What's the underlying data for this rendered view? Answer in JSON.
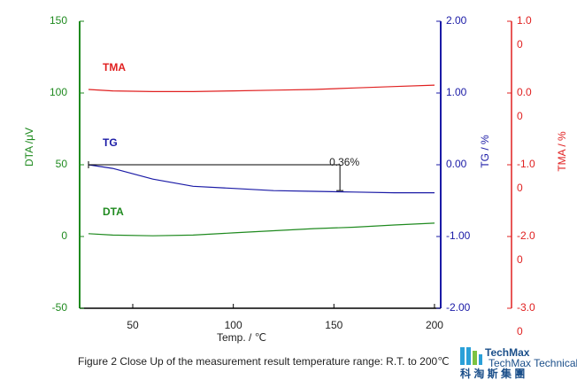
{
  "chart_data": {
    "type": "line",
    "x_label": "Temp. / ℃",
    "y_label": "DTA /μV",
    "y2_label": "TG / %",
    "y3_label": "TMA / %",
    "caption": "Figure 2 Close Up of the measurement result temperature range: R.T. to 200℃",
    "logo": {
      "name": "TechMax",
      "subtitle": "TechMax Technical Co., Ltd",
      "chinese": "科 淘 斯 集 團"
    },
    "xlim": [
      23.6,
      203.1
    ],
    "xticks": [
      50,
      100,
      150,
      200
    ],
    "ylim": [
      -50,
      150
    ],
    "yticks": [
      -50,
      0,
      50,
      100,
      150
    ],
    "y2lim": [
      -2,
      2
    ],
    "y2ticks": [
      {
        "value": -2,
        "label": "-2.00"
      },
      {
        "value": -1,
        "label": "-1.00"
      },
      {
        "value": 0,
        "label": "0.00"
      },
      {
        "value": 1,
        "label": "1.00"
      },
      {
        "value": 2,
        "label": "2.00"
      }
    ],
    "y3lim": [
      -3,
      1
    ],
    "y3ticks": [
      {
        "value": -3,
        "label": "-3.0"
      },
      {
        "value": -2,
        "label": "-2.0"
      },
      {
        "value": -1,
        "label": "-1.0"
      },
      {
        "value": 0,
        "label": "0.0"
      },
      {
        "value": 1,
        "label": "1.0"
      }
    ],
    "y3_secondary_labels": [
      "0",
      "0",
      "0",
      "0",
      "0"
    ],
    "x": [
      28,
      40,
      60,
      80,
      100,
      120,
      140,
      160,
      180,
      200
    ],
    "series": [
      {
        "name": "TMA",
        "color": "#e02020",
        "axis": "y3",
        "values": [
          0.05,
          0.03,
          0.02,
          0.02,
          0.03,
          0.04,
          0.05,
          0.07,
          0.09,
          0.11
        ]
      },
      {
        "name": "TG",
        "color": "#1a1aa6",
        "axis": "y2",
        "values": [
          0.0,
          -0.05,
          -0.2,
          -0.3,
          -0.33,
          -0.36,
          -0.37,
          -0.38,
          -0.39,
          -0.39
        ]
      },
      {
        "name": "DTA",
        "color": "#1f8a1f",
        "axis": "y",
        "values": [
          2,
          1,
          0.5,
          1,
          2.5,
          4,
          5.5,
          6.5,
          8,
          9.3
        ]
      }
    ],
    "annotation": {
      "text": "0.36%",
      "x": [
        28,
        153
      ],
      "y": [
        0,
        -0.36
      ]
    }
  }
}
